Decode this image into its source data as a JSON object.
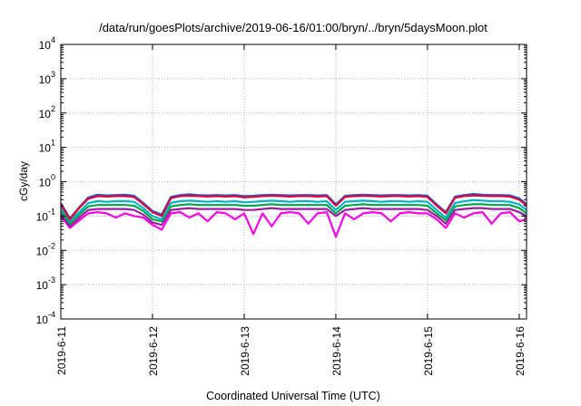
{
  "chart_data": {
    "type": "line",
    "title": "/data/run/goesPlots/archive/2019-06-16/01:00/bryn/../bryn/5daysMoon.plot",
    "xlabel": "Coordinated Universal Time (UTC)",
    "ylabel": "cGy/day",
    "yscale": "log",
    "ylim": [
      0.0001,
      10000
    ],
    "xlim": [
      0,
      5.08
    ],
    "grid": true,
    "x_ticks": [
      {
        "pos": 0,
        "label": "2019-6-11"
      },
      {
        "pos": 1,
        "label": "2019-6-12"
      },
      {
        "pos": 2,
        "label": "2019-6-13"
      },
      {
        "pos": 3,
        "label": "2019-6-14"
      },
      {
        "pos": 4,
        "label": "2019-6-15"
      },
      {
        "pos": 5,
        "label": "2019-6-16"
      }
    ],
    "y_ticks": [
      {
        "exp": -4,
        "label": "10",
        "sup": "-4"
      },
      {
        "exp": -3,
        "label": "10",
        "sup": "-3"
      },
      {
        "exp": -2,
        "label": "10",
        "sup": "-2"
      },
      {
        "exp": -1,
        "label": "10",
        "sup": "-1"
      },
      {
        "exp": 0,
        "label": "10",
        "sup": "0"
      },
      {
        "exp": 1,
        "label": "10",
        "sup": "1"
      },
      {
        "exp": 2,
        "label": "10",
        "sup": "2"
      },
      {
        "exp": 3,
        "label": "10",
        "sup": "3"
      },
      {
        "exp": 4,
        "label": "10",
        "sup": "4"
      }
    ],
    "x": [
      0,
      0.1,
      0.2,
      0.3,
      0.4,
      0.5,
      0.6,
      0.7,
      0.8,
      0.9,
      1.0,
      1.1,
      1.2,
      1.3,
      1.4,
      1.5,
      1.6,
      1.7,
      1.8,
      1.9,
      2.0,
      2.1,
      2.2,
      2.3,
      2.4,
      2.5,
      2.6,
      2.7,
      2.8,
      2.9,
      3.0,
      3.1,
      3.2,
      3.3,
      3.4,
      3.5,
      3.6,
      3.7,
      3.8,
      3.9,
      4.0,
      4.1,
      4.2,
      4.3,
      4.4,
      4.5,
      4.6,
      4.7,
      4.8,
      4.9,
      5.0,
      5.08
    ],
    "series": [
      {
        "color": "#e3003a",
        "values": [
          0.22,
          0.08,
          0.17,
          0.32,
          0.38,
          0.37,
          0.38,
          0.38,
          0.36,
          0.22,
          0.13,
          0.1,
          0.33,
          0.38,
          0.39,
          0.38,
          0.37,
          0.38,
          0.37,
          0.38,
          0.35,
          0.36,
          0.38,
          0.39,
          0.38,
          0.37,
          0.38,
          0.38,
          0.37,
          0.38,
          0.2,
          0.36,
          0.38,
          0.39,
          0.38,
          0.37,
          0.38,
          0.38,
          0.37,
          0.38,
          0.36,
          0.2,
          0.12,
          0.34,
          0.38,
          0.4,
          0.39,
          0.38,
          0.38,
          0.37,
          0.3,
          0.2
        ]
      },
      {
        "color": "#1e66d8",
        "values": [
          0.24,
          0.085,
          0.18,
          0.35,
          0.42,
          0.4,
          0.41,
          0.42,
          0.39,
          0.24,
          0.14,
          0.11,
          0.36,
          0.41,
          0.43,
          0.41,
          0.4,
          0.41,
          0.4,
          0.41,
          0.38,
          0.39,
          0.41,
          0.42,
          0.41,
          0.4,
          0.41,
          0.41,
          0.4,
          0.41,
          0.22,
          0.39,
          0.41,
          0.42,
          0.41,
          0.4,
          0.41,
          0.41,
          0.4,
          0.41,
          0.39,
          0.22,
          0.13,
          0.37,
          0.41,
          0.44,
          0.42,
          0.41,
          0.41,
          0.4,
          0.33,
          0.22
        ]
      },
      {
        "color": "#00b4c8",
        "values": [
          0.18,
          0.07,
          0.13,
          0.24,
          0.27,
          0.26,
          0.27,
          0.27,
          0.26,
          0.17,
          0.1,
          0.08,
          0.24,
          0.27,
          0.28,
          0.27,
          0.26,
          0.27,
          0.26,
          0.27,
          0.25,
          0.26,
          0.27,
          0.28,
          0.27,
          0.26,
          0.27,
          0.27,
          0.26,
          0.27,
          0.15,
          0.26,
          0.27,
          0.28,
          0.27,
          0.26,
          0.27,
          0.27,
          0.26,
          0.27,
          0.26,
          0.15,
          0.09,
          0.24,
          0.27,
          0.29,
          0.28,
          0.27,
          0.27,
          0.26,
          0.22,
          0.15
        ]
      },
      {
        "color": "#00a64a",
        "values": [
          0.14,
          0.06,
          0.11,
          0.19,
          0.21,
          0.21,
          0.21,
          0.21,
          0.2,
          0.14,
          0.08,
          0.07,
          0.19,
          0.21,
          0.22,
          0.21,
          0.21,
          0.21,
          0.21,
          0.21,
          0.2,
          0.2,
          0.21,
          0.22,
          0.21,
          0.21,
          0.21,
          0.21,
          0.21,
          0.21,
          0.12,
          0.2,
          0.21,
          0.22,
          0.21,
          0.21,
          0.21,
          0.21,
          0.21,
          0.21,
          0.2,
          0.12,
          0.075,
          0.19,
          0.21,
          0.22,
          0.22,
          0.21,
          0.21,
          0.21,
          0.17,
          0.12
        ]
      },
      {
        "color": "#9a1ea0",
        "values": [
          0.12,
          0.05,
          0.09,
          0.15,
          0.16,
          0.16,
          0.16,
          0.16,
          0.15,
          0.11,
          0.065,
          0.055,
          0.15,
          0.16,
          0.17,
          0.16,
          0.16,
          0.16,
          0.16,
          0.16,
          0.15,
          0.15,
          0.16,
          0.17,
          0.16,
          0.16,
          0.16,
          0.16,
          0.16,
          0.16,
          0.1,
          0.15,
          0.16,
          0.17,
          0.16,
          0.16,
          0.16,
          0.16,
          0.16,
          0.16,
          0.15,
          0.1,
          0.06,
          0.15,
          0.16,
          0.17,
          0.17,
          0.16,
          0.16,
          0.16,
          0.13,
          0.1
        ]
      },
      {
        "color": "#ff00e8",
        "values": [
          0.1,
          0.045,
          0.075,
          0.12,
          0.13,
          0.12,
          0.09,
          0.12,
          0.1,
          0.09,
          0.055,
          0.04,
          0.12,
          0.13,
          0.09,
          0.12,
          0.07,
          0.13,
          0.12,
          0.08,
          0.12,
          0.03,
          0.12,
          0.05,
          0.12,
          0.13,
          0.12,
          0.06,
          0.12,
          0.13,
          0.025,
          0.12,
          0.08,
          0.12,
          0.13,
          0.12,
          0.07,
          0.12,
          0.13,
          0.12,
          0.12,
          0.08,
          0.045,
          0.12,
          0.09,
          0.12,
          0.13,
          0.06,
          0.12,
          0.13,
          0.07,
          0.08
        ]
      }
    ]
  }
}
